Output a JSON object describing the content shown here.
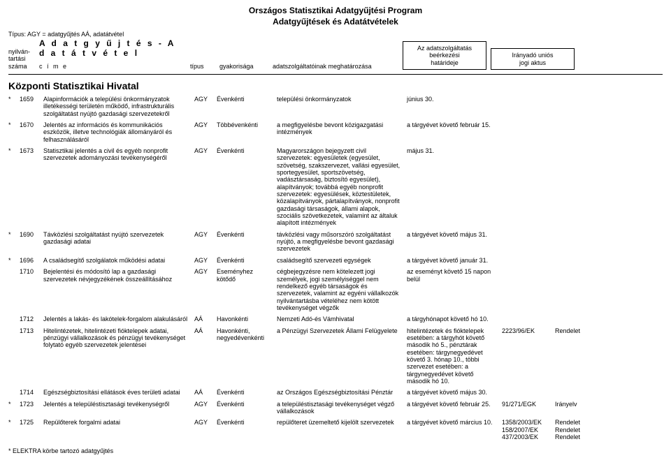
{
  "doc": {
    "title1": "Országos Statisztikai Adatgyűjtési Program",
    "title2": "Adatgyűjtések és Adatátvételek",
    "type_line": "Típus:  AGY = adatgyűjtés AÁ, adatátvétel",
    "banner": "A d a t g y ű j t é s  -  A d a t á t v é t e l"
  },
  "cols": {
    "col1a": "nyilván-",
    "col1b": "tartási",
    "col1c": "száma",
    "col2": "c  í  m  e",
    "col3": "típus",
    "col4": "gyakorisága",
    "col5": "adatszolgáltatóinak meghatározása",
    "col6a": "Az adatszolgáltatás",
    "col6b": "beérkezési",
    "col6c": "határideje",
    "col7a": "Irányadó uniós",
    "col7b": "jogi aktus"
  },
  "agency": "Központi Statisztikai Hivatal",
  "footnote": "*  ELEKTRA körbe tartozó adatgyűjtés",
  "rows": [
    {
      "star": "*",
      "id": "1659",
      "title": "Alapinformációk a települési önkormányzatok illetékességi területén működő, infrastrukturális szolgáltatást nyújtó gazdasági szervezetekről",
      "type": "AGY",
      "freq": "Évenkénti",
      "scope": "települési önkormányzatok",
      "deadline": "június 30.",
      "eu": "",
      "act": ""
    },
    {
      "star": "*",
      "id": "1670",
      "title": "Jelentés  az információs és kommunikációs eszközök, illetve technológiák állományáról és felhasználásáról",
      "type": "AGY",
      "freq": "Többévenkénti",
      "scope": "a megfigyelésbe bevont közigazgatási intézmények",
      "deadline": "a tárgyévet követő február 15.",
      "eu": "",
      "act": ""
    },
    {
      "star": "*",
      "id": "1673",
      "title": "Statisztikai jelentés a civil és egyéb nonprofit szervezetek adományozási tevékenységéről",
      "type": "AGY",
      "freq": "Évenkénti",
      "scope": "Magyarországon bejegyzett civil szervezetek: egyesületek (egyesület, szövetség, szakszervezet, vallási egyesület, sportegyesület, sportszövetség, vadásztársaság, biztosító egyesület), alapítványok; továbbá egyéb nonprofit szervezetek: egyesülések, köztestületek, közalapítványok, pártalapítványok, nonprofit gazdasági társaságok, állami alapok, szociális szövetkezetek, valamint az általuk alapított intézmények",
      "deadline": "május 31.",
      "eu": "",
      "act": ""
    },
    {
      "star": "*",
      "id": "1690",
      "title": "Távközlési szolgáltatást nyújtó szervezetek gazdasági adatai",
      "type": "AGY",
      "freq": "Évenkénti",
      "scope": "távközlési vagy műsorszóró szolgáltatást nyújtó, a megfigyelésbe bevont  gazdasági szervezetek",
      "deadline": "a tárgyévet követő május 31.",
      "eu": "",
      "act": ""
    },
    {
      "star": "*",
      "id": "1696",
      "title": "A családsegítő szolgálatok  működési adatai",
      "type": "AGY",
      "freq": "Évenkénti",
      "scope": "családsegítő szervezeti egységek",
      "deadline": "a tárgyévet követő január 31.",
      "eu": "",
      "act": ""
    },
    {
      "star": "",
      "id": "1710",
      "title": "Bejelentési és módosító lap a gazdasági szervezetek névjegyzékének összeállításához",
      "type": "AGY",
      "freq": "Eseményhez kötődő",
      "scope": "cégbejegyzésre nem kötelezett jogi személyek, jogi személyiséggel nem rendelkező egyéb társaságok és szervezetek, valamint az egyéni vállalkozók nyilvántartásba vételéhez nem kötött tevékenységet végzők",
      "deadline": "az eseményt követő 15 napon belül",
      "eu": "",
      "act": ""
    },
    {
      "star": "",
      "id": "1712",
      "title": "Jelentés a lakás- és lakótelek-forgalom alakulásáról",
      "type": "AÁ",
      "freq": "Havonkénti",
      "scope": "Nemzeti Adó-és Vámhivatal",
      "deadline": "a tárgyhónapot követő hó 10.",
      "eu": "",
      "act": ""
    },
    {
      "star": "",
      "id": "1713",
      "title": "Hitelintézetek, hitelintézeti fióktelepek adatai, pénzügyi vállalkozások és pénzügyi tevékenységet folytató egyéb szervezetek jelentései",
      "type": "AÁ",
      "freq": "Havonkénti, negyedévenkénti",
      "scope": "a Pénzügyi Szervezetek Állami Felügyelete",
      "deadline": "hitelintézetek és fióktelepek esetében: a tárgyhót követő második hó 5.,  pénztárak esetében: tárgynegyedévet követő 3. hónap 10.,  többi szervezet esetében: a tárgynegyedévet követő második hó 10.",
      "eu": "2223/96/EK",
      "act": "Rendelet"
    },
    {
      "star": "",
      "id": "1714",
      "title": "Egészségbiztosítási ellátások éves területi adatai",
      "type": "AÁ",
      "freq": "Évenkénti",
      "scope": "az Országos Egészségbiztosítási Pénztár",
      "deadline": "a tárgyévet követő május 30.",
      "eu": "",
      "act": ""
    },
    {
      "star": "*",
      "id": "1723",
      "title": "Jelentés a településtisztasági tevékenységről",
      "type": "AGY",
      "freq": "Évenkénti",
      "scope": "a településtisztasági tevékenységet végző vállalkozások",
      "deadline": "a tárgyévet követő február 25.",
      "eu": "91/271/EGK",
      "act": "Irányelv"
    },
    {
      "star": "*",
      "id": "1725",
      "title": "Repülőterek forgalmi adatai",
      "type": "AGY",
      "freq": "Évenkénti",
      "scope": "repülőteret üzemeltető kijelölt szervezetek",
      "deadline": "a tárgyévet követő március 10.",
      "eu": "1358/2003/EK\n158/2007/EK\n437/2003/EK",
      "act": "Rendelet\nRendelet\nRendelet"
    }
  ]
}
